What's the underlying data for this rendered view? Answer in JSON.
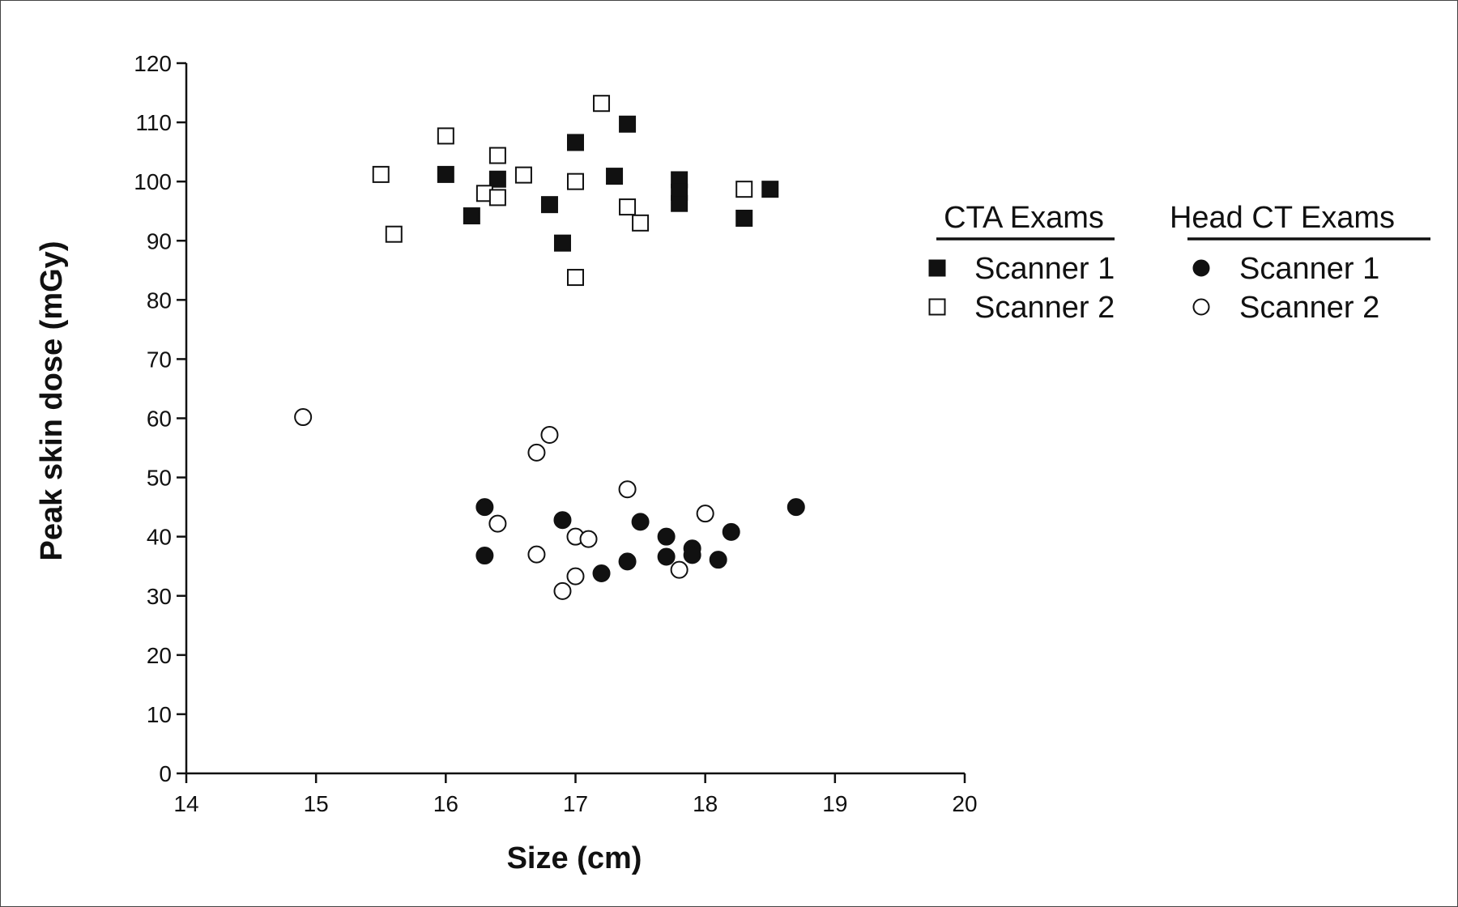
{
  "chart_data": {
    "type": "scatter",
    "title": "",
    "xlabel": "Size (cm)",
    "ylabel": "Peak skin dose (mGy)",
    "xlim": [
      14,
      20
    ],
    "ylim": [
      0,
      120
    ],
    "x_ticks": [
      14,
      15,
      16,
      17,
      18,
      19,
      20
    ],
    "y_ticks": [
      0,
      10,
      20,
      30,
      40,
      50,
      60,
      70,
      80,
      90,
      100,
      110,
      120
    ],
    "grid": false,
    "legend_position": "right",
    "legend_groups": [
      {
        "title": "CTA Exams",
        "entries": [
          {
            "label": "Scanner 1",
            "marker": "square",
            "fill": "#111111"
          },
          {
            "label": "Scanner 2",
            "marker": "square",
            "fill": "#ffffff"
          }
        ]
      },
      {
        "title": "Head CT Exams",
        "entries": [
          {
            "label": "Scanner 1",
            "marker": "circle",
            "fill": "#111111"
          },
          {
            "label": "Scanner 2",
            "marker": "circle",
            "fill": "#ffffff"
          }
        ]
      }
    ],
    "series": [
      {
        "group": "CTA Exams",
        "name": "Scanner 1",
        "marker": "square",
        "fill": "#111111",
        "points": [
          [
            16.0,
            101.2
          ],
          [
            16.2,
            94.2
          ],
          [
            16.4,
            100.4
          ],
          [
            16.8,
            96.1
          ],
          [
            16.9,
            89.6
          ],
          [
            17.0,
            106.6
          ],
          [
            17.3,
            100.9
          ],
          [
            17.4,
            109.7
          ],
          [
            17.8,
            100.3
          ],
          [
            17.8,
            98.2
          ],
          [
            17.8,
            96.3
          ],
          [
            18.3,
            93.8
          ],
          [
            18.5,
            98.7
          ]
        ]
      },
      {
        "group": "CTA Exams",
        "name": "Scanner 2",
        "marker": "square",
        "fill": "#ffffff",
        "points": [
          [
            15.5,
            101.2
          ],
          [
            15.6,
            91.1
          ],
          [
            16.0,
            107.7
          ],
          [
            16.3,
            98.0
          ],
          [
            16.4,
            104.4
          ],
          [
            16.4,
            97.3
          ],
          [
            16.6,
            101.1
          ],
          [
            17.0,
            100.0
          ],
          [
            17.0,
            83.8
          ],
          [
            17.2,
            113.2
          ],
          [
            17.4,
            95.7
          ],
          [
            17.5,
            93.0
          ],
          [
            18.3,
            98.7
          ]
        ]
      },
      {
        "group": "Head CT Exams",
        "name": "Scanner 1",
        "marker": "circle",
        "fill": "#111111",
        "points": [
          [
            16.3,
            45.0
          ],
          [
            16.3,
            36.8
          ],
          [
            16.9,
            42.8
          ],
          [
            17.2,
            33.8
          ],
          [
            17.4,
            35.8
          ],
          [
            17.5,
            42.5
          ],
          [
            17.7,
            40.0
          ],
          [
            17.7,
            36.6
          ],
          [
            17.9,
            38.0
          ],
          [
            17.9,
            36.9
          ],
          [
            18.1,
            36.1
          ],
          [
            18.2,
            40.8
          ],
          [
            18.7,
            45.0
          ]
        ]
      },
      {
        "group": "Head CT Exams",
        "name": "Scanner 2",
        "marker": "circle",
        "fill": "#ffffff",
        "points": [
          [
            14.9,
            60.2
          ],
          [
            16.4,
            42.2
          ],
          [
            16.7,
            54.2
          ],
          [
            16.7,
            37.0
          ],
          [
            16.8,
            57.2
          ],
          [
            16.9,
            30.8
          ],
          [
            17.0,
            40.0
          ],
          [
            17.0,
            33.3
          ],
          [
            17.1,
            39.6
          ],
          [
            17.4,
            48.0
          ],
          [
            17.8,
            34.4
          ],
          [
            18.0,
            43.9
          ]
        ]
      }
    ]
  }
}
